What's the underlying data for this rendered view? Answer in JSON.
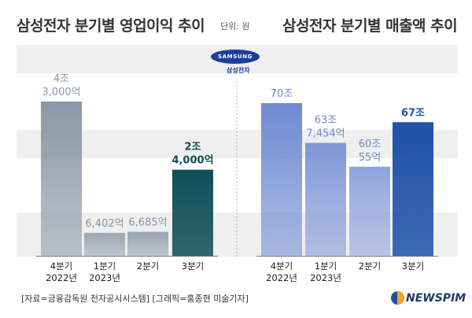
{
  "titles": {
    "left": "삼성전자 분기별 영업이익 추이",
    "right": "삼성전자 분기별 매출액 추이",
    "unit": "단위: 원"
  },
  "logo": {
    "wordmark": "SAMSUNG",
    "sub": "삼성전자"
  },
  "footer": {
    "source": "[자료=금융감독원 전자공시시스템] [그래픽=홍종현 미술기자]",
    "brand": "NEWSPIM"
  },
  "colors": {
    "left_bars": [
      "#8a97a6",
      "#9ba6b3",
      "#99a4b2",
      "#0e4e58"
    ],
    "right_bars": [
      "#6e8ad2",
      "#7e95d6",
      "#8ea3dd",
      "#1f51a8"
    ],
    "highlight_text_left": "#0e4e58",
    "highlight_text_right": "#1f51a8",
    "band": "#efefef"
  },
  "chart_data": [
    {
      "type": "bar",
      "title": "삼성전자 분기별 영업이익 추이",
      "categories": [
        "4분기 2022년",
        "1분기 2023년",
        "2분기",
        "3분기"
      ],
      "category_labels": [
        [
          "4분기",
          "2022년"
        ],
        [
          "1분기",
          "2023년"
        ],
        [
          "2분기"
        ],
        [
          "3분기"
        ]
      ],
      "values": [
        43000,
        6402,
        6685,
        24000
      ],
      "unit": "억 원",
      "value_labels": [
        [
          "4조",
          "3,000억"
        ],
        [
          "6,402억"
        ],
        [
          "6,685억"
        ],
        [
          "2조",
          "4,000억"
        ]
      ],
      "highlight_index": 3
    },
    {
      "type": "bar",
      "title": "삼성전자 분기별 매출액 추이",
      "categories": [
        "4분기 2022년",
        "1분기 2023년",
        "2분기",
        "3분기"
      ],
      "category_labels": [
        [
          "4분기",
          "2022년"
        ],
        [
          "1분기",
          "2023년"
        ],
        [
          "2분기"
        ],
        [
          "3분기"
        ]
      ],
      "values": [
        700000,
        637454,
        600055,
        670000
      ],
      "unit": "억 원",
      "value_labels": [
        [
          "70조"
        ],
        [
          "63조",
          "7,454억"
        ],
        [
          "60조",
          "55억"
        ],
        [
          "67조"
        ]
      ],
      "highlight_index": 3
    }
  ]
}
